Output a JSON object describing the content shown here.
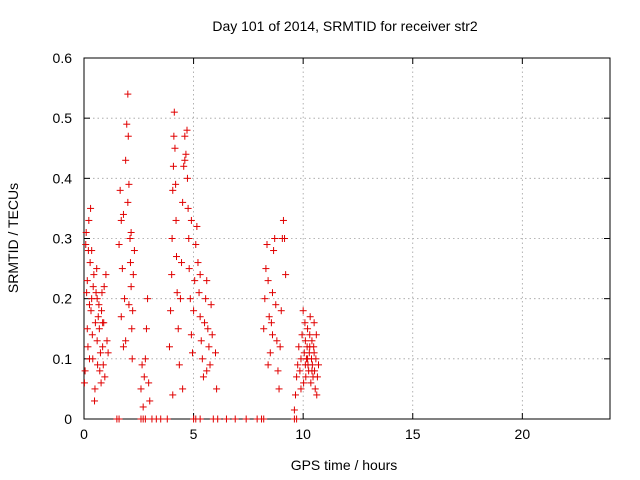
{
  "chart_data": {
    "type": "scatter",
    "title": "Day 101 of 2014, SRMTID for receiver str2",
    "xlabel": "GPS time / hours",
    "ylabel": "SRMTID / TECUs",
    "xlim": [
      0,
      24
    ],
    "ylim": [
      0,
      0.6
    ],
    "xticks": [
      0,
      5,
      10,
      15,
      20
    ],
    "xtick_labels": [
      "0",
      "5",
      "10",
      "15",
      "20"
    ],
    "yticks": [
      0,
      0.1,
      0.2,
      0.3,
      0.4,
      0.5,
      0.6
    ],
    "ytick_labels": [
      "0",
      "0.1",
      "0.2",
      "0.3",
      "0.4",
      "0.5",
      "0.6"
    ],
    "grid": true,
    "marker": "+",
    "color": "#e00000",
    "series": [
      {
        "name": "SRMTID",
        "points": [
          [
            0.02,
            0.06
          ],
          [
            0.05,
            0.08
          ],
          [
            0.08,
            0.29
          ],
          [
            0.1,
            0.31
          ],
          [
            0.12,
            0.21
          ],
          [
            0.15,
            0.15
          ],
          [
            0.18,
            0.12
          ],
          [
            0.2,
            0.28
          ],
          [
            0.22,
            0.33
          ],
          [
            0.25,
            0.19
          ],
          [
            0.28,
            0.26
          ],
          [
            0.3,
            0.35
          ],
          [
            0.32,
            0.18
          ],
          [
            0.35,
            0.2
          ],
          [
            0.38,
            0.14
          ],
          [
            0.4,
            0.1
          ],
          [
            0.42,
            0.22
          ],
          [
            0.45,
            0.24
          ],
          [
            0.48,
            0.03
          ],
          [
            0.5,
            0.05
          ],
          [
            0.52,
            0.16
          ],
          [
            0.55,
            0.21
          ],
          [
            0.58,
            0.25
          ],
          [
            0.6,
            0.13
          ],
          [
            0.62,
            0.09
          ],
          [
            0.65,
            0.17
          ],
          [
            0.68,
            0.19
          ],
          [
            0.7,
            0.15
          ],
          [
            0.72,
            0.08
          ],
          [
            0.75,
            0.11
          ],
          [
            0.78,
            0.06
          ],
          [
            0.8,
            0.18
          ],
          [
            0.82,
            0.21
          ],
          [
            0.85,
            0.12
          ],
          [
            0.88,
            0.09
          ],
          [
            0.9,
            0.16
          ],
          [
            0.92,
            0.22
          ],
          [
            0.95,
            0.07
          ],
          [
            1.0,
            0.24
          ],
          [
            1.05,
            0.13
          ],
          [
            1.1,
            0.11
          ],
          [
            0.15,
            0.23
          ],
          [
            0.35,
            0.28
          ],
          [
            0.6,
            0.2
          ],
          [
            0.85,
            0.16
          ],
          [
            0.25,
            0.1
          ],
          [
            1.6,
            0.29
          ],
          [
            1.65,
            0.38
          ],
          [
            1.7,
            0.33
          ],
          [
            1.75,
            0.25
          ],
          [
            1.8,
            0.12
          ],
          [
            1.85,
            0.2
          ],
          [
            1.9,
            0.43
          ],
          [
            1.95,
            0.49
          ],
          [
            2.0,
            0.54
          ],
          [
            2.02,
            0.47
          ],
          [
            2.05,
            0.39
          ],
          [
            2.1,
            0.3
          ],
          [
            2.12,
            0.26
          ],
          [
            2.15,
            0.22
          ],
          [
            2.18,
            0.15
          ],
          [
            2.2,
            0.1
          ],
          [
            2.22,
            0.18
          ],
          [
            2.25,
            0.24
          ],
          [
            2.3,
            0.28
          ],
          [
            1.7,
            0.17
          ],
          [
            1.8,
            0.34
          ],
          [
            2.0,
            0.36
          ],
          [
            2.15,
            0.31
          ],
          [
            1.9,
            0.13
          ],
          [
            2.05,
            0.19
          ],
          [
            2.6,
            0.05
          ],
          [
            2.65,
            0.09
          ],
          [
            2.7,
            0.02
          ],
          [
            2.75,
            0.07
          ],
          [
            2.8,
            0.1
          ],
          [
            2.85,
            0.15
          ],
          [
            2.9,
            0.2
          ],
          [
            2.95,
            0.06
          ],
          [
            3.0,
            0.03
          ],
          [
            3.9,
            0.12
          ],
          [
            3.95,
            0.18
          ],
          [
            4.0,
            0.24
          ],
          [
            4.02,
            0.3
          ],
          [
            4.05,
            0.38
          ],
          [
            4.08,
            0.42
          ],
          [
            4.1,
            0.47
          ],
          [
            4.12,
            0.51
          ],
          [
            4.15,
            0.45
          ],
          [
            4.18,
            0.39
          ],
          [
            4.2,
            0.33
          ],
          [
            4.22,
            0.27
          ],
          [
            4.25,
            0.21
          ],
          [
            4.3,
            0.15
          ],
          [
            4.35,
            0.09
          ],
          [
            4.4,
            0.2
          ],
          [
            4.45,
            0.26
          ],
          [
            4.5,
            0.36
          ],
          [
            4.55,
            0.42
          ],
          [
            4.6,
            0.47
          ],
          [
            4.65,
            0.44
          ],
          [
            4.7,
            0.48
          ],
          [
            4.72,
            0.4
          ],
          [
            4.75,
            0.35
          ],
          [
            4.78,
            0.3
          ],
          [
            4.8,
            0.25
          ],
          [
            4.85,
            0.2
          ],
          [
            4.9,
            0.14
          ],
          [
            4.95,
            0.11
          ],
          [
            5.0,
            0.18
          ],
          [
            5.05,
            0.23
          ],
          [
            5.1,
            0.29
          ],
          [
            5.15,
            0.32
          ],
          [
            5.2,
            0.26
          ],
          [
            5.25,
            0.21
          ],
          [
            5.3,
            0.17
          ],
          [
            5.35,
            0.13
          ],
          [
            5.4,
            0.1
          ],
          [
            5.45,
            0.07
          ],
          [
            5.5,
            0.16
          ],
          [
            5.55,
            0.2
          ],
          [
            5.6,
            0.23
          ],
          [
            5.65,
            0.15
          ],
          [
            5.7,
            0.12
          ],
          [
            5.75,
            0.09
          ],
          [
            5.8,
            0.19
          ],
          [
            5.85,
            0.14
          ],
          [
            6.0,
            0.11
          ],
          [
            6.05,
            0.05
          ],
          [
            4.05,
            0.04
          ],
          [
            4.5,
            0.05
          ],
          [
            4.6,
            0.43
          ],
          [
            4.9,
            0.33
          ],
          [
            5.3,
            0.24
          ],
          [
            5.6,
            0.08
          ],
          [
            8.2,
            0.15
          ],
          [
            8.25,
            0.2
          ],
          [
            8.3,
            0.25
          ],
          [
            8.35,
            0.29
          ],
          [
            8.4,
            0.23
          ],
          [
            8.45,
            0.17
          ],
          [
            8.5,
            0.11
          ],
          [
            8.55,
            0.16
          ],
          [
            8.6,
            0.21
          ],
          [
            8.65,
            0.28
          ],
          [
            8.7,
            0.3
          ],
          [
            8.75,
            0.19
          ],
          [
            8.8,
            0.13
          ],
          [
            8.85,
            0.08
          ],
          [
            8.9,
            0.05
          ],
          [
            8.95,
            0.12
          ],
          [
            9.0,
            0.18
          ],
          [
            9.05,
            0.3
          ],
          [
            9.1,
            0.33
          ],
          [
            9.15,
            0.3
          ],
          [
            9.2,
            0.24
          ],
          [
            8.4,
            0.09
          ],
          [
            8.6,
            0.14
          ],
          [
            9.6,
            0.015
          ],
          [
            9.65,
            0.04
          ],
          [
            9.7,
            0.07
          ],
          [
            9.75,
            0.09
          ],
          [
            9.8,
            0.12
          ],
          [
            9.85,
            0.08
          ],
          [
            9.9,
            0.1
          ],
          [
            9.95,
            0.14
          ],
          [
            10.0,
            0.18
          ],
          [
            10.02,
            0.06
          ],
          [
            10.05,
            0.11
          ],
          [
            10.08,
            0.16
          ],
          [
            10.1,
            0.13
          ],
          [
            10.12,
            0.07
          ],
          [
            10.15,
            0.1
          ],
          [
            10.18,
            0.12
          ],
          [
            10.2,
            0.15
          ],
          [
            10.22,
            0.09
          ],
          [
            10.25,
            0.08
          ],
          [
            10.28,
            0.11
          ],
          [
            10.3,
            0.14
          ],
          [
            10.32,
            0.17
          ],
          [
            10.35,
            0.06
          ],
          [
            10.38,
            0.1
          ],
          [
            10.4,
            0.13
          ],
          [
            10.42,
            0.09
          ],
          [
            10.45,
            0.07
          ],
          [
            10.48,
            0.12
          ],
          [
            10.5,
            0.16
          ],
          [
            10.52,
            0.08
          ],
          [
            10.55,
            0.05
          ],
          [
            10.58,
            0.1
          ],
          [
            10.6,
            0.14
          ],
          [
            10.62,
            0.04
          ],
          [
            10.65,
            0.07
          ],
          [
            10.7,
            0.09
          ],
          [
            9.9,
            0.05
          ],
          [
            10.1,
            0.09
          ],
          [
            10.3,
            0.12
          ],
          [
            10.5,
            0.11
          ],
          [
            10.2,
            0.1
          ],
          [
            10.4,
            0.08
          ],
          [
            1.5,
            0
          ],
          [
            1.6,
            0
          ],
          [
            2.6,
            0
          ],
          [
            2.7,
            0
          ],
          [
            2.8,
            0
          ],
          [
            3.1,
            0
          ],
          [
            3.3,
            0
          ],
          [
            3.5,
            0
          ],
          [
            3.8,
            0
          ],
          [
            5.0,
            0
          ],
          [
            5.1,
            0
          ],
          [
            5.3,
            0
          ],
          [
            5.9,
            0
          ],
          [
            6.1,
            0
          ],
          [
            6.5,
            0
          ],
          [
            6.9,
            0
          ],
          [
            7.4,
            0
          ],
          [
            7.9,
            0
          ],
          [
            8.1,
            0
          ],
          [
            8.2,
            0
          ],
          [
            9.6,
            0
          ],
          [
            9.7,
            0
          ]
        ]
      }
    ]
  }
}
